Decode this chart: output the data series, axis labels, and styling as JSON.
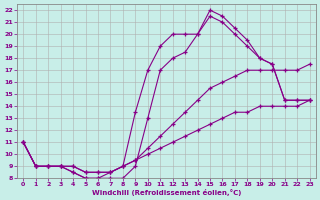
{
  "xlabel": "Windchill (Refroidissement éolien,°C)",
  "bg_color": "#c8eee8",
  "line_color": "#880088",
  "grid_color": "#b0b0b0",
  "xlim": [
    -0.5,
    23.5
  ],
  "ylim": [
    8,
    22.5
  ],
  "xticks": [
    0,
    1,
    2,
    3,
    4,
    5,
    6,
    7,
    8,
    9,
    10,
    11,
    12,
    13,
    14,
    15,
    16,
    17,
    18,
    19,
    20,
    21,
    22,
    23
  ],
  "yticks": [
    8,
    9,
    10,
    11,
    12,
    13,
    14,
    15,
    16,
    17,
    18,
    19,
    20,
    21,
    22
  ],
  "lines": [
    {
      "x": [
        0,
        1,
        2,
        3,
        4,
        5,
        6,
        7,
        8,
        9,
        10,
        11,
        12,
        13,
        14,
        15,
        16,
        17,
        18,
        19,
        20,
        21,
        22,
        23
      ],
      "y": [
        11,
        9,
        9,
        9,
        9,
        8.5,
        8.5,
        8.5,
        9,
        9.5,
        10,
        10.5,
        11,
        11.5,
        12,
        12.5,
        13,
        13.5,
        13.5,
        14,
        14,
        14,
        14,
        14.5
      ]
    },
    {
      "x": [
        0,
        1,
        2,
        3,
        4,
        5,
        6,
        7,
        8,
        9,
        10,
        11,
        12,
        13,
        14,
        15,
        16,
        17,
        18,
        19,
        20,
        21,
        22,
        23
      ],
      "y": [
        11,
        9,
        9,
        9,
        9,
        8.5,
        8.5,
        8.5,
        9,
        9.5,
        10.5,
        11.5,
        12.5,
        13.5,
        14.5,
        15.5,
        16,
        16.5,
        17,
        17,
        17,
        17,
        17,
        17.5
      ]
    },
    {
      "x": [
        0,
        1,
        2,
        3,
        4,
        5,
        6,
        7,
        8,
        9,
        10,
        11,
        12,
        13,
        14,
        15,
        16,
        17,
        18,
        19,
        20,
        21,
        22,
        23
      ],
      "y": [
        11,
        9,
        9,
        9,
        8.5,
        8,
        8,
        8,
        8,
        9,
        13,
        17,
        18,
        18.5,
        20,
        21.5,
        21,
        20,
        19,
        18,
        17.5,
        14.5,
        14.5,
        14.5
      ]
    },
    {
      "x": [
        0,
        1,
        2,
        3,
        4,
        5,
        6,
        7,
        8,
        9,
        10,
        11,
        12,
        13,
        14,
        15,
        16,
        17,
        18,
        19,
        20,
        21,
        22,
        23
      ],
      "y": [
        11,
        9,
        9,
        9,
        8.5,
        8,
        8,
        8.5,
        9,
        13.5,
        17,
        19,
        20,
        20,
        20,
        22,
        21.5,
        20.5,
        19.5,
        18,
        17.5,
        14.5,
        14.5,
        14.5
      ]
    }
  ]
}
